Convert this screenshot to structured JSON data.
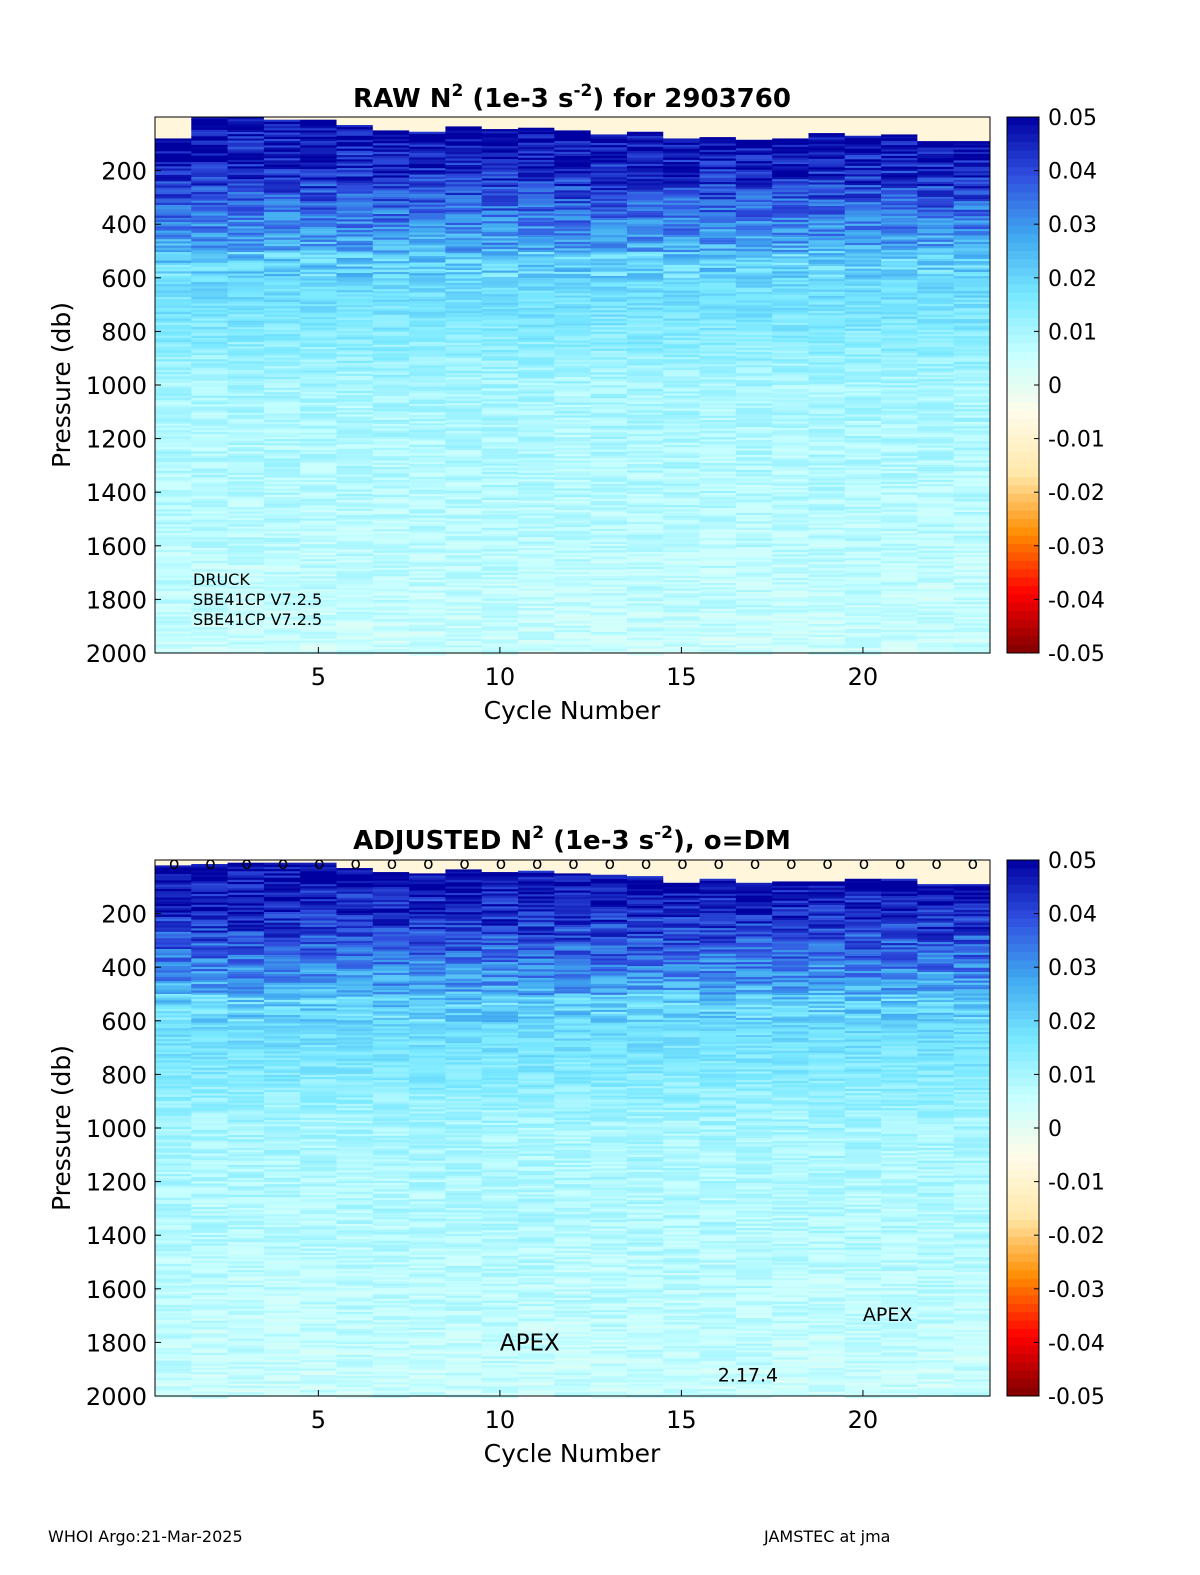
{
  "footer": {
    "left": "WHOI Argo:21-Mar-2025",
    "right": "JAMSTEC at jma"
  },
  "colors": {
    "colormap": [
      "#7f0000",
      "#ff0000",
      "#ff8c00",
      "#ffe8a8",
      "#fffbe8",
      "#c8ffff",
      "#78e8ff",
      "#40a8f0",
      "#3050e0",
      "#0000a0"
    ]
  },
  "chart_data": [
    {
      "type": "heatmap",
      "title_main": "RAW N",
      "title_sup": "2",
      "title_mid": " (1e-3 s",
      "title_sup2": "-2",
      "title_end": ") for 2903760",
      "xlabel": "Cycle Number",
      "ylabel": "Pressure (db)",
      "xlim": [
        1,
        23
      ],
      "ylim": [
        0,
        2000
      ],
      "y_reversed": true,
      "xticks": [
        5,
        10,
        15,
        20
      ],
      "yticks": [
        200,
        400,
        600,
        800,
        1000,
        1200,
        1400,
        1600,
        1800,
        2000
      ],
      "clim": [
        -0.05,
        0.05
      ],
      "colorbar_ticks": [
        "0.05",
        "0.04",
        "0.03",
        "0.02",
        "0.01",
        "0",
        "-0.01",
        "-0.02",
        "-0.03",
        "-0.04",
        "-0.05"
      ],
      "cycles": [
        1,
        2,
        3,
        4,
        5,
        6,
        7,
        8,
        9,
        10,
        11,
        12,
        13,
        14,
        15,
        16,
        17,
        18,
        19,
        20,
        21,
        22,
        23
      ],
      "surface_start_db": [
        80,
        0,
        0,
        10,
        10,
        30,
        50,
        55,
        35,
        45,
        40,
        50,
        65,
        55,
        80,
        75,
        85,
        80,
        60,
        70,
        65,
        90,
        90
      ],
      "annotations": [
        "DRUCK",
        "SBE41CP V7.2.5",
        "SBE41CP V7.2.5"
      ]
    },
    {
      "type": "heatmap",
      "title_main": "ADJUSTED N",
      "title_sup": "2",
      "title_mid": " (1e-3 s",
      "title_sup2": "-2",
      "title_end": "), o=DM",
      "xlabel": "Cycle Number",
      "ylabel": "Pressure (db)",
      "xlim": [
        1,
        23
      ],
      "ylim": [
        0,
        2000
      ],
      "y_reversed": true,
      "xticks": [
        5,
        10,
        15,
        20
      ],
      "yticks": [
        200,
        400,
        600,
        800,
        1000,
        1200,
        1400,
        1600,
        1800,
        2000
      ],
      "clim": [
        -0.05,
        0.05
      ],
      "colorbar_ticks": [
        "0.05",
        "0.04",
        "0.03",
        "0.02",
        "0.01",
        "0",
        "-0.01",
        "-0.02",
        "-0.03",
        "-0.04",
        "-0.05"
      ],
      "cycles": [
        1,
        2,
        3,
        4,
        5,
        6,
        7,
        8,
        9,
        10,
        11,
        12,
        13,
        14,
        15,
        16,
        17,
        18,
        19,
        20,
        21,
        22,
        23
      ],
      "surface_start_db": [
        20,
        15,
        10,
        10,
        10,
        30,
        45,
        50,
        35,
        45,
        40,
        50,
        55,
        60,
        85,
        70,
        85,
        80,
        80,
        70,
        70,
        90,
        90
      ],
      "dm_marker_symbol": "o",
      "dm_cycles": [
        1,
        2,
        3,
        4,
        5,
        6,
        7,
        8,
        9,
        10,
        11,
        12,
        13,
        14,
        15,
        16,
        17,
        18,
        19,
        20,
        21,
        22,
        23
      ],
      "annotations": [
        {
          "text": "APEX",
          "x": 10,
          "y": 1830
        },
        {
          "text": "2.17.4",
          "x": 16,
          "y": 1945
        },
        {
          "text": "APEX",
          "x": 20,
          "y": 1720
        }
      ]
    }
  ]
}
